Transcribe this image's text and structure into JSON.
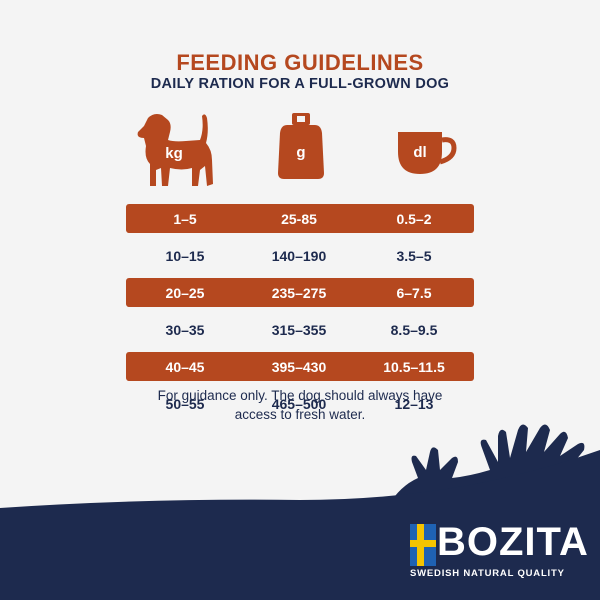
{
  "header": {
    "title": "FEEDING GUIDELINES",
    "subtitle": "DAILY RATION FOR A FULL-GROWN DOG"
  },
  "icons": {
    "dog": {
      "icon": "dog-icon",
      "label": "kg"
    },
    "weight": {
      "icon": "weight-icon",
      "label": "g"
    },
    "cup": {
      "icon": "cup-icon",
      "label": "dl"
    }
  },
  "table": {
    "rows": [
      {
        "kg": "1–5",
        "g": "25-85",
        "dl": "0.5–2",
        "shaded": true
      },
      {
        "kg": "10–15",
        "g": "140–190",
        "dl": "3.5–5",
        "shaded": false
      },
      {
        "kg": "20–25",
        "g": "235–275",
        "dl": "6–7.5",
        "shaded": true
      },
      {
        "kg": "30–35",
        "g": "315–355",
        "dl": "8.5–9.5",
        "shaded": false
      },
      {
        "kg": "40–45",
        "g": "395–430",
        "dl": "10.5–11.5",
        "shaded": true
      },
      {
        "kg": "50–55",
        "g": "465–500",
        "dl": "12–13",
        "shaded": false
      }
    ]
  },
  "note": "For guidance only. The dog should always have access to fresh water.",
  "brand": {
    "name": "BOZITA",
    "tagline": "SWEDISH NATURAL QUALITY",
    "icon": "swedish-flag-icon"
  },
  "colors": {
    "accent": "#b5481f",
    "navy": "#1d2a4e",
    "background": "#f4f4f4",
    "flag_blue": "#1f62b3",
    "flag_yellow": "#f5c400"
  }
}
